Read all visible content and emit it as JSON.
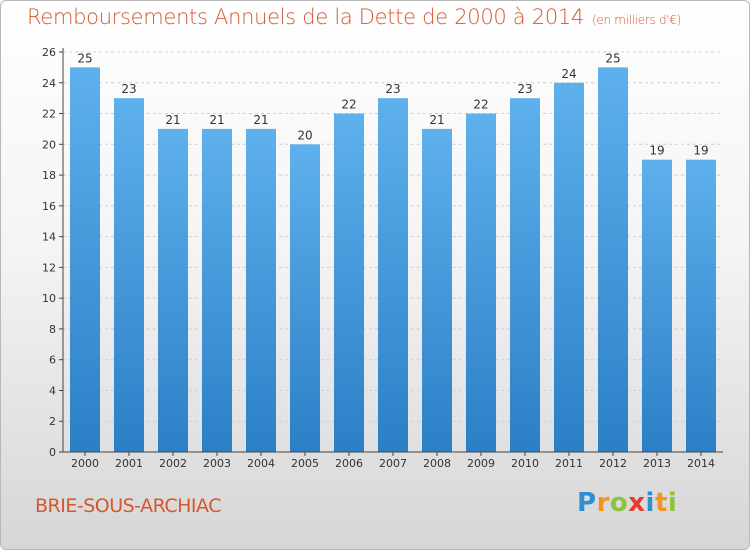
{
  "title": "Remboursements Annuels de la Dette de 2000 à 2014",
  "unit_label": "(en milliers d'€)",
  "commune": "BRIE-SOUS-ARCHIAC",
  "logo": {
    "text": "Proxiti",
    "letters": [
      {
        "ch": "P",
        "color": "#2d8fd6"
      },
      {
        "ch": "r",
        "color": "#f29222"
      },
      {
        "ch": "o",
        "color": "#8cc43f"
      },
      {
        "ch": "x",
        "color": "#e7392c"
      },
      {
        "ch": "i",
        "color": "#2d8fd6"
      },
      {
        "ch": "t",
        "color": "#f29222"
      },
      {
        "ch": "i",
        "color": "#8cc43f"
      }
    ]
  },
  "colors": {
    "title": "#d6562e",
    "bar_top": "#5eb1ec",
    "bar_bottom": "#2b7fc6",
    "axis": "#444444",
    "grid": "#d0d0d0"
  },
  "chart_data": {
    "type": "bar",
    "title": "Remboursements Annuels de la Dette de 2000 à 2014",
    "categories": [
      "2000",
      "2001",
      "2002",
      "2003",
      "2004",
      "2005",
      "2006",
      "2007",
      "2008",
      "2009",
      "2010",
      "2011",
      "2012",
      "2013",
      "2014"
    ],
    "values": [
      25,
      23,
      21,
      21,
      21,
      20,
      22,
      23,
      21,
      22,
      23,
      24,
      25,
      19,
      19
    ],
    "ylim": [
      0,
      26
    ],
    "yticks": [
      0,
      2,
      4,
      6,
      8,
      10,
      12,
      14,
      16,
      18,
      20,
      22,
      24,
      26
    ],
    "xlabel": "",
    "ylabel": "",
    "grid": true,
    "data_labels": true
  }
}
